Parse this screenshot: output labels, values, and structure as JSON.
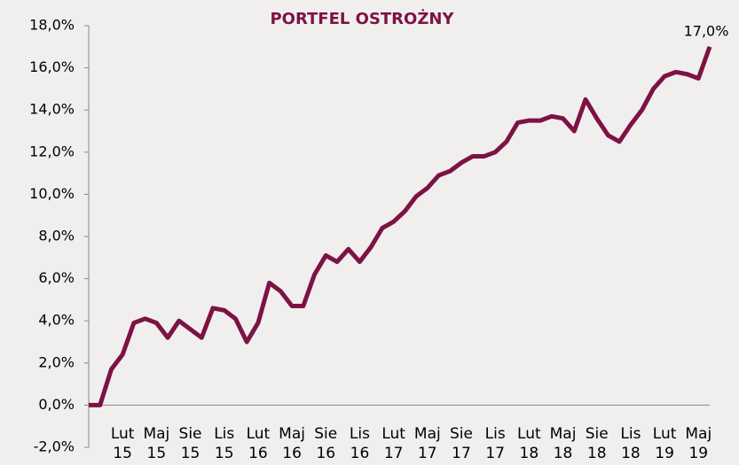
{
  "chart_data": {
    "type": "line",
    "title": "PORTFEL OSTROŻNY",
    "categories": [
      null,
      null,
      null,
      "Lut 15",
      null,
      null,
      "Maj 15",
      null,
      null,
      "Sie 15",
      null,
      null,
      "Lis 15",
      null,
      null,
      "Lut 16",
      null,
      null,
      "Maj 16",
      null,
      null,
      "Sie 16",
      null,
      null,
      "Lis 16",
      null,
      null,
      "Lut 17",
      null,
      null,
      "Maj 17",
      null,
      null,
      "Sie 17",
      null,
      null,
      "Lis 17",
      null,
      null,
      "Lut 18",
      null,
      null,
      "Maj 18",
      null,
      null,
      "Sie 18",
      null,
      null,
      "Lis 18",
      null,
      null,
      "Lut 19",
      null,
      null,
      "Maj 19",
      null
    ],
    "values": [
      0,
      0,
      1.7,
      2.4,
      3.9,
      4.1,
      3.9,
      3.2,
      4.0,
      3.6,
      3.2,
      4.6,
      4.5,
      4.1,
      3.0,
      3.9,
      5.8,
      5.4,
      4.7,
      4.7,
      6.2,
      7.1,
      6.8,
      7.4,
      6.8,
      7.5,
      8.4,
      8.7,
      9.2,
      9.9,
      10.3,
      10.9,
      11.1,
      11.5,
      11.8,
      11.8,
      12.0,
      12.5,
      13.4,
      13.5,
      13.5,
      13.7,
      13.6,
      13.0,
      14.5,
      13.6,
      12.8,
      12.5,
      13.3,
      14.0,
      15.0,
      15.6,
      15.8,
      15.7,
      15.5,
      17.0
    ],
    "value_labels": [
      null,
      null,
      null,
      null,
      null,
      null,
      null,
      null,
      null,
      null,
      null,
      null,
      null,
      null,
      null,
      null,
      null,
      null,
      null,
      null,
      null,
      null,
      null,
      null,
      null,
      null,
      null,
      null,
      null,
      null,
      null,
      null,
      null,
      null,
      null,
      null,
      null,
      null,
      null,
      null,
      null,
      null,
      null,
      null,
      null,
      null,
      null,
      null,
      null,
      null,
      null,
      null,
      null,
      null,
      null,
      "17,0%"
    ],
    "color": "#7d1244",
    "ylim": [
      -2,
      18
    ],
    "yticks": [
      {
        "value": -2,
        "label": "-2,0%"
      },
      {
        "value": 0,
        "label": "0,0%"
      },
      {
        "value": 2,
        "label": "2,0%"
      },
      {
        "value": 4,
        "label": "4,0%"
      },
      {
        "value": 6,
        "label": "6,0%"
      },
      {
        "value": 8,
        "label": "8,0%"
      },
      {
        "value": 10,
        "label": "10,0%"
      },
      {
        "value": 12,
        "label": "12,0%"
      },
      {
        "value": 14,
        "label": "14,0%"
      },
      {
        "value": 16,
        "label": "16,0%"
      },
      {
        "value": 18,
        "label": "18,0%"
      }
    ]
  }
}
